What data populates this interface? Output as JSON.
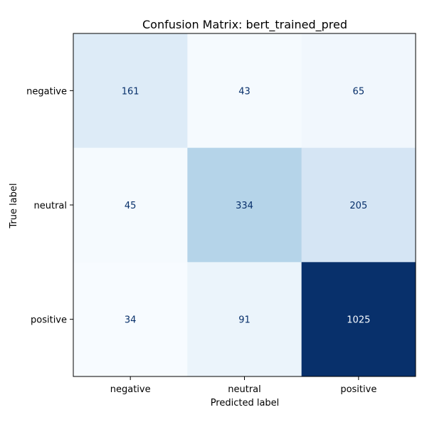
{
  "chart_data": {
    "type": "heatmap",
    "title": "Confusion Matrix: bert_trained_pred",
    "xlabel": "Predicted label",
    "ylabel": "True label",
    "x_categories": [
      "negative",
      "neutral",
      "positive"
    ],
    "y_categories": [
      "negative",
      "neutral",
      "positive"
    ],
    "values": [
      [
        161,
        43,
        65
      ],
      [
        45,
        334,
        205
      ],
      [
        34,
        91,
        1025
      ]
    ],
    "colormap": "Blues",
    "colorbar": false,
    "grid": false
  }
}
